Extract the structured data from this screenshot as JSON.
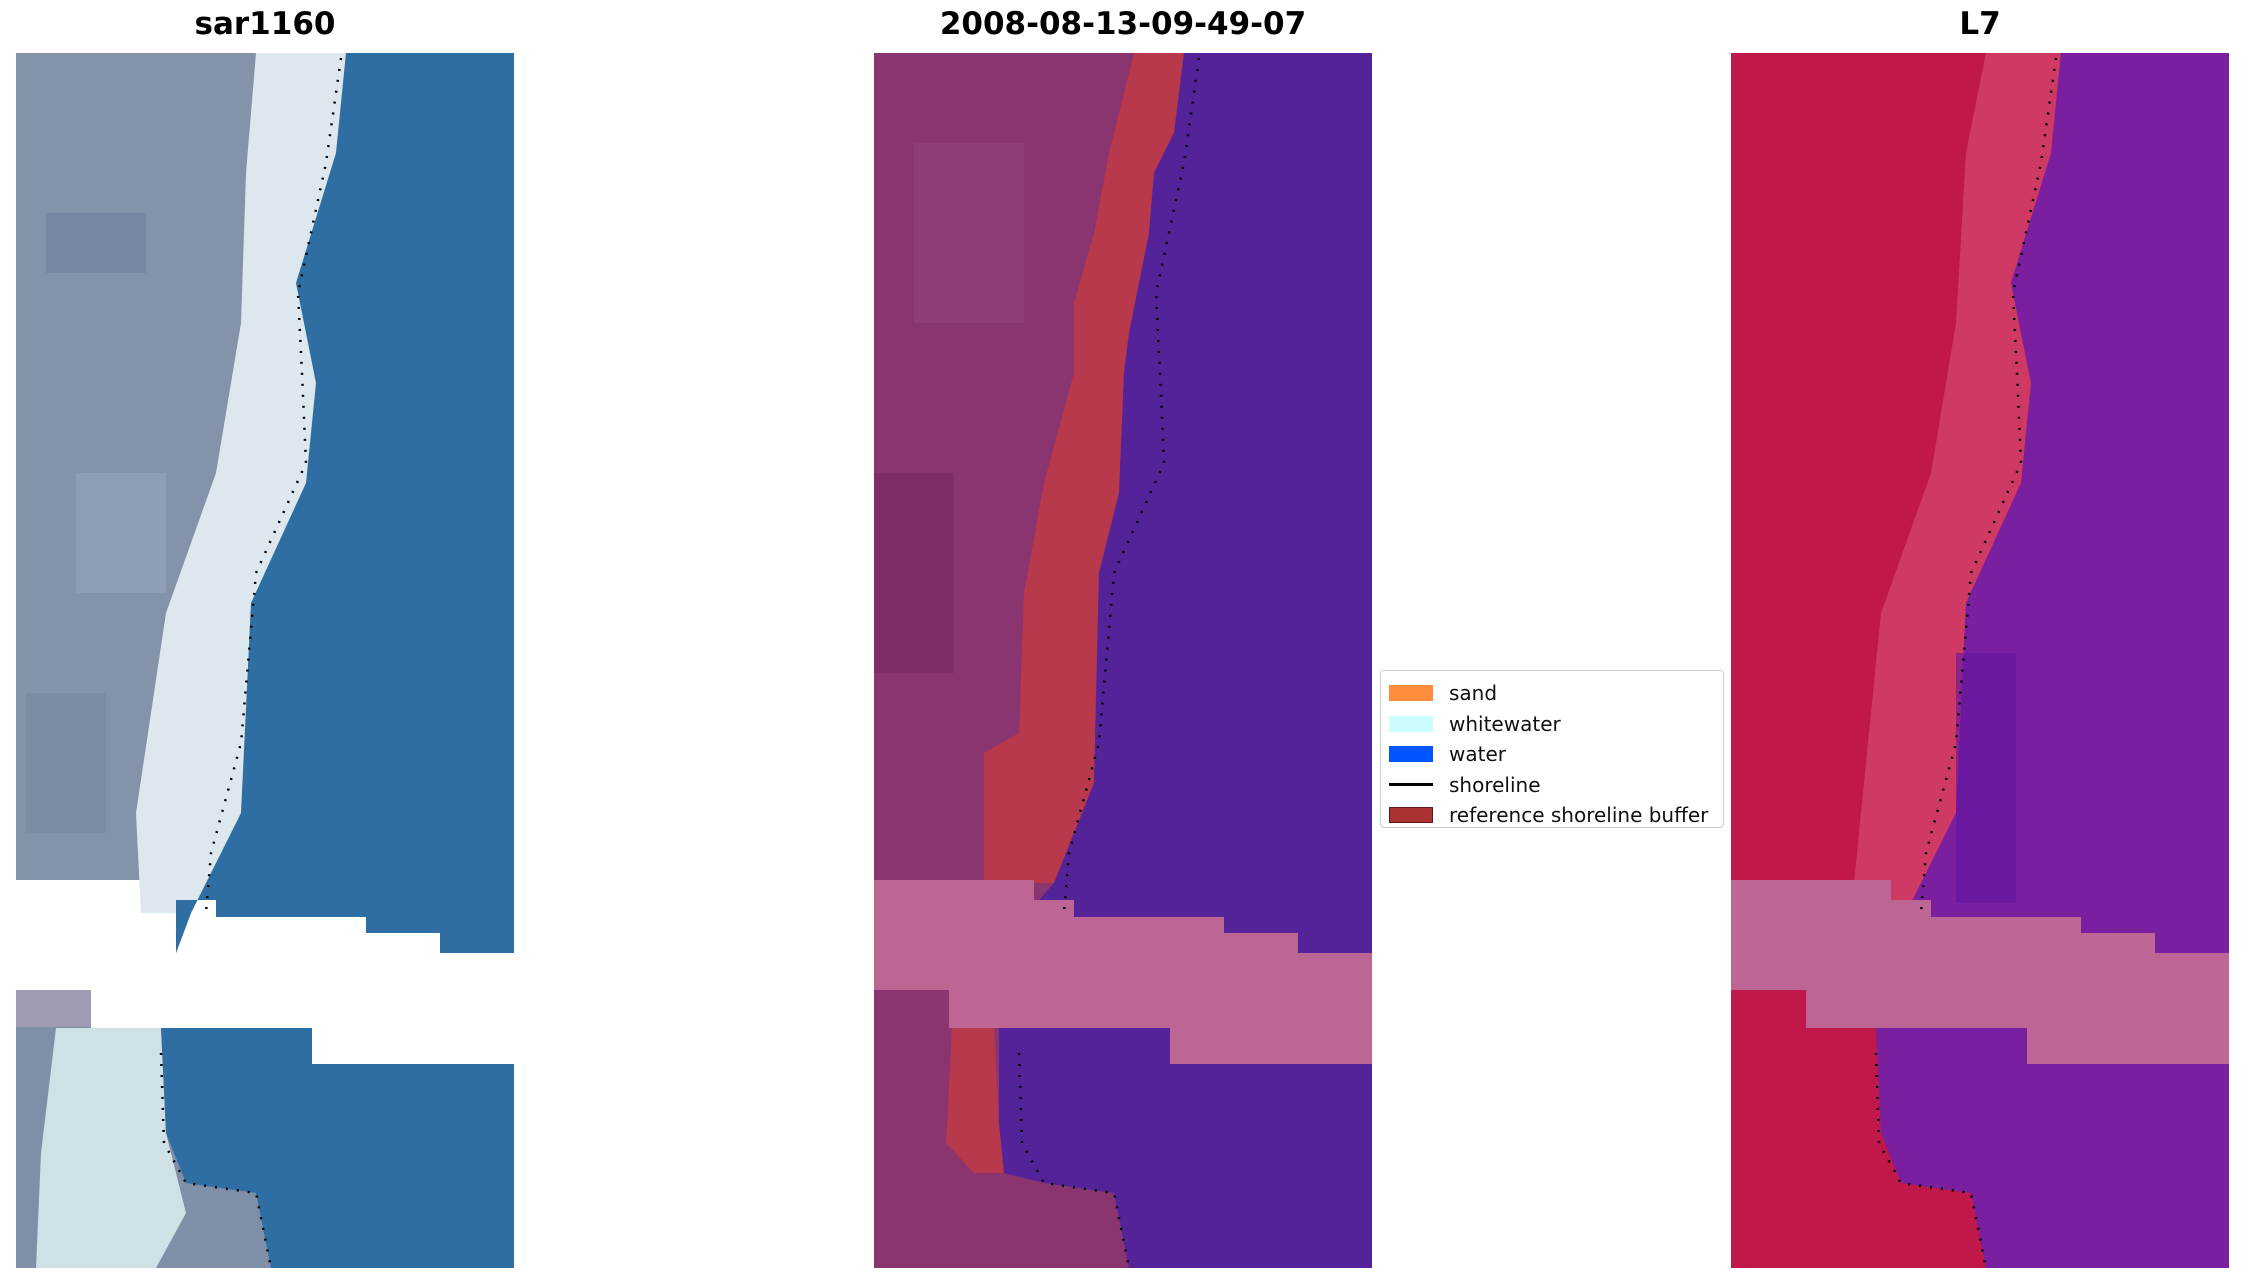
{
  "panels": {
    "rgb": {
      "title": "sar1160"
    },
    "classified": {
      "title": "2008-08-13-09-49-07"
    },
    "index": {
      "title": "L7"
    }
  },
  "legend": {
    "items": [
      {
        "label": "sand",
        "color": "#ff8c3c",
        "kind": "patch"
      },
      {
        "label": "whitewater",
        "color": "#ccfcfc",
        "kind": "patch"
      },
      {
        "label": "water",
        "color": "#0055ff",
        "kind": "patch"
      },
      {
        "label": "shoreline",
        "color": "#000000",
        "kind": "line"
      },
      {
        "label": "reference shoreline buffer",
        "color": "#a83232",
        "kind": "patch"
      }
    ]
  },
  "colors": {
    "rgb_land": "#8090a8",
    "rgb_whitewater": "#dce8ec",
    "rgb_water": "#3070a0",
    "class_land": "#8a3470",
    "class_water": "#54239a",
    "class_buffer": "#b8384c",
    "class_nodata": "#bd6694",
    "index_land": "#c01848",
    "index_water": "#7a1fa0",
    "index_nodata": "#bd6694"
  }
}
